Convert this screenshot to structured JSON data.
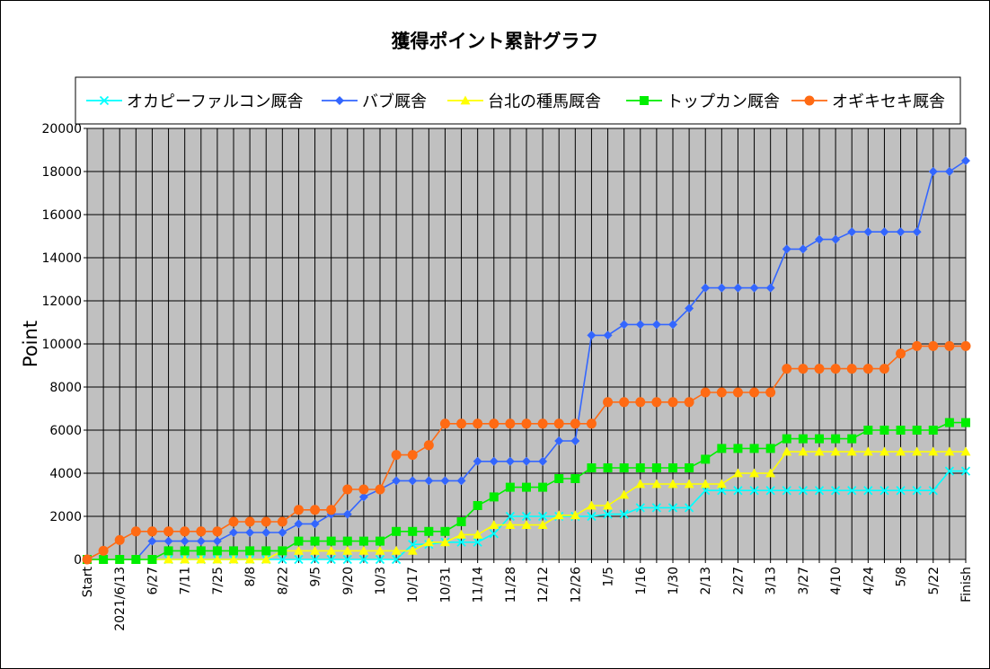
{
  "chart_data": {
    "type": "line",
    "title": "獲得ポイント累計グラフ",
    "xlabel": "",
    "ylabel": "Point",
    "ylim": [
      0,
      20000
    ],
    "yticks": [
      0,
      2000,
      4000,
      6000,
      8000,
      10000,
      12000,
      14000,
      16000,
      18000,
      20000
    ],
    "grid": true,
    "legend_position": "top",
    "categories": [
      "Start",
      "p1",
      "2021/6/13",
      "p3",
      "6/27",
      "p5",
      "7/11",
      "p7",
      "7/25",
      "p9",
      "8/8",
      "p11",
      "8/22",
      "p13",
      "9/5",
      "p15",
      "9/20",
      "p17",
      "10/3",
      "p19",
      "10/17",
      "p21",
      "10/31",
      "p23",
      "11/14",
      "p25",
      "11/28",
      "p27",
      "12/12",
      "p29",
      "12/26",
      "p31",
      "1/5",
      "p33",
      "1/16",
      "p35",
      "1/30",
      "p37",
      "2/13",
      "p39",
      "2/27",
      "p41",
      "3/13",
      "p43",
      "3/27",
      "p45",
      "4/10",
      "p47",
      "4/24",
      "p49",
      "5/8",
      "p51",
      "5/22",
      "p53",
      "Finish"
    ],
    "tick_labels": [
      "Start",
      "2021/6/13",
      "6/27",
      "7/11",
      "7/25",
      "8/8",
      "8/22",
      "9/5",
      "9/20",
      "10/3",
      "10/17",
      "10/31",
      "11/14",
      "11/28",
      "12/12",
      "12/26",
      "1/5",
      "1/16",
      "1/30",
      "2/13",
      "2/27",
      "3/13",
      "3/27",
      "4/10",
      "4/24",
      "5/8",
      "5/22",
      "Finish"
    ],
    "series": [
      {
        "name": "オカピーファルコン厩舎",
        "color": "#00ffff",
        "marker": "x",
        "values": [
          0,
          0,
          0,
          0,
          0,
          0,
          0,
          0,
          0,
          0,
          0,
          0,
          0,
          0,
          0,
          0,
          0,
          0,
          0,
          0,
          700,
          700,
          800,
          800,
          800,
          1200,
          2000,
          2000,
          2000,
          2000,
          2000,
          2000,
          2100,
          2100,
          2400,
          2400,
          2400,
          2400,
          3200,
          3200,
          3200,
          3200,
          3200,
          3200,
          3200,
          3200,
          3200,
          3200,
          3200,
          3200,
          3200,
          3200,
          3200,
          4100,
          4100
        ]
      },
      {
        "name": "バブ厩舎",
        "color": "#3366ff",
        "marker": "diamond",
        "values": [
          0,
          0,
          0,
          0,
          850,
          850,
          850,
          850,
          850,
          1250,
          1250,
          1250,
          1250,
          1650,
          1650,
          2100,
          2100,
          2900,
          3250,
          3650,
          3650,
          3650,
          3650,
          3650,
          4550,
          4550,
          4550,
          4550,
          4550,
          5500,
          5500,
          10400,
          10400,
          10900,
          10900,
          10900,
          10900,
          11650,
          12600,
          12600,
          12600,
          12600,
          12600,
          14400,
          14400,
          14850,
          14850,
          15200,
          15200,
          15200,
          15200,
          15200,
          18000,
          18000,
          18500
        ]
      },
      {
        "name": "台北の種馬厩舎",
        "color": "#ffff00",
        "marker": "triangle",
        "values": [
          0,
          0,
          0,
          0,
          0,
          0,
          0,
          0,
          0,
          0,
          0,
          0,
          400,
          400,
          400,
          400,
          400,
          400,
          400,
          400,
          400,
          800,
          800,
          1150,
          1150,
          1600,
          1600,
          1600,
          1600,
          2050,
          2050,
          2500,
          2500,
          3000,
          3500,
          3500,
          3500,
          3500,
          3500,
          3500,
          4000,
          4000,
          4000,
          5000,
          5000,
          5000,
          5000,
          5000,
          5000,
          5000,
          5000,
          5000,
          5000,
          5000,
          5000
        ]
      },
      {
        "name": "トップカン厩舎",
        "color": "#00ee00",
        "marker": "square",
        "values": [
          0,
          0,
          0,
          0,
          0,
          400,
          400,
          400,
          400,
          400,
          400,
          400,
          400,
          850,
          850,
          850,
          850,
          850,
          850,
          1300,
          1300,
          1300,
          1300,
          1750,
          2500,
          2900,
          3350,
          3350,
          3350,
          3750,
          3750,
          4250,
          4250,
          4250,
          4250,
          4250,
          4250,
          4250,
          4650,
          5150,
          5150,
          5150,
          5150,
          5600,
          5600,
          5600,
          5600,
          5600,
          6000,
          6000,
          6000,
          6000,
          6000,
          6350,
          6350
        ]
      },
      {
        "name": "オギキセキ厩舎",
        "color": "#ff6a13",
        "marker": "circle",
        "values": [
          0,
          400,
          900,
          1300,
          1300,
          1300,
          1300,
          1300,
          1300,
          1750,
          1750,
          1750,
          1750,
          2300,
          2300,
          2300,
          3250,
          3250,
          3250,
          4850,
          4850,
          5300,
          6300,
          6300,
          6300,
          6300,
          6300,
          6300,
          6300,
          6300,
          6300,
          6300,
          7300,
          7300,
          7300,
          7300,
          7300,
          7300,
          7750,
          7750,
          7750,
          7750,
          7750,
          8850,
          8850,
          8850,
          8850,
          8850,
          8850,
          8850,
          9550,
          9900,
          9900,
          9900,
          9900
        ]
      }
    ]
  }
}
